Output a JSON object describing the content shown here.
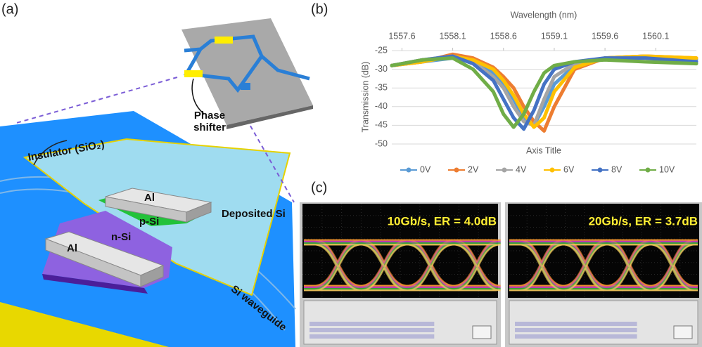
{
  "panels": {
    "a": "(a)",
    "b": "(b)",
    "c": "(c)"
  },
  "device": {
    "phase_shifter": [
      "Phase",
      "shifter"
    ],
    "insulator": "Insulator (SiO₂)",
    "al_top": "Al",
    "p_si": "p-Si",
    "n_si": "n-Si",
    "al_bottom": "Al",
    "deposited_si": "Deposited Si",
    "si_waveguide": "Si waveguide"
  },
  "chart_data": {
    "type": "line",
    "xlabel": "Wavelength (nm)",
    "ylabel": "Transmission (dB)",
    "bottom_axis_title": "Axis Title",
    "x": [
      1557.5,
      1557.8,
      1558.1,
      1558.3,
      1558.5,
      1558.6,
      1558.7,
      1558.8,
      1558.9,
      1559.0,
      1559.1,
      1559.3,
      1559.6,
      1560.0,
      1560.5
    ],
    "series": [
      {
        "name": "0V",
        "color": "#5b9bd5",
        "values": [
          -29,
          -28,
          -27,
          -28,
          -31,
          -34,
          -38,
          -43,
          -45,
          -40,
          -34,
          -29,
          -27,
          -26.5,
          -27.5
        ]
      },
      {
        "name": "2V",
        "color": "#ed7d31",
        "values": [
          -29,
          -28,
          -26,
          -27,
          -29.5,
          -32,
          -35,
          -40,
          -44,
          -46.5,
          -40,
          -30,
          -27,
          -26.5,
          -27
        ]
      },
      {
        "name": "4V",
        "color": "#a5a5a5",
        "values": [
          -29,
          -27.5,
          -26.5,
          -28,
          -32,
          -35,
          -40,
          -44,
          -45,
          -38,
          -32,
          -28.5,
          -27,
          -27,
          -28
        ]
      },
      {
        "name": "6V",
        "color": "#ffc000",
        "values": [
          -29,
          -28,
          -26.5,
          -27.5,
          -30,
          -33,
          -37,
          -42,
          -45.5,
          -43,
          -36,
          -29.5,
          -27,
          -26.5,
          -27
        ]
      },
      {
        "name": "8V",
        "color": "#4472c4",
        "values": [
          -29,
          -27.5,
          -26.5,
          -28.5,
          -33,
          -38,
          -43,
          -46,
          -41,
          -34,
          -30,
          -28,
          -27,
          -27,
          -28
        ]
      },
      {
        "name": "10V",
        "color": "#70ad47",
        "values": [
          -29,
          -27.5,
          -27,
          -30,
          -36,
          -42,
          -45.5,
          -42,
          -36,
          -31,
          -29,
          -28,
          -27.5,
          -28,
          -28.5
        ]
      }
    ],
    "xlim": [
      1557.5,
      1560.5
    ],
    "xticks": [
      1557.6,
      1558.1,
      1558.6,
      1559.1,
      1559.6,
      1560.1
    ],
    "ylim": [
      -50,
      -25
    ],
    "yticks": [
      -25,
      -30,
      -35,
      -40,
      -45,
      -50
    ],
    "grid": true,
    "legend": "bottom"
  },
  "eye_diagrams": [
    {
      "label": "10Gb/s, ER = 4.0dB"
    },
    {
      "label": "20Gb/s, ER = 3.7dB"
    }
  ]
}
